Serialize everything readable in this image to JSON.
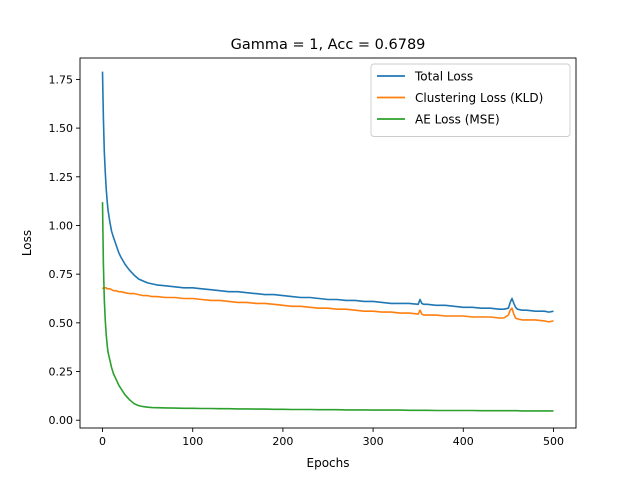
{
  "chart_data": {
    "type": "line",
    "title": "Gamma = 1, Acc = 0.6789",
    "xlabel": "Epochs",
    "ylabel": "Loss",
    "xlim": [
      -25,
      525
    ],
    "ylim": [
      -0.04,
      1.86
    ],
    "x_ticks": [
      0,
      100,
      200,
      300,
      400,
      500
    ],
    "y_ticks": [
      0.0,
      0.25,
      0.5,
      0.75,
      1.0,
      1.25,
      1.5,
      1.75
    ],
    "y_tick_labels": [
      "0.00",
      "0.25",
      "0.50",
      "0.75",
      "1.00",
      "1.25",
      "1.50",
      "1.75"
    ],
    "grid": false,
    "legend_position": "top-right",
    "x": [
      0,
      1,
      2,
      3,
      4,
      5,
      6,
      8,
      10,
      12,
      15,
      18,
      20,
      25,
      30,
      35,
      40,
      45,
      50,
      55,
      60,
      70,
      80,
      90,
      100,
      110,
      120,
      130,
      140,
      150,
      160,
      170,
      180,
      190,
      200,
      210,
      220,
      230,
      240,
      250,
      260,
      270,
      280,
      290,
      300,
      310,
      320,
      330,
      340,
      350,
      352,
      354,
      356,
      360,
      370,
      380,
      390,
      400,
      410,
      420,
      430,
      440,
      445,
      450,
      452,
      454,
      456,
      458,
      460,
      465,
      470,
      480,
      490,
      495,
      500
    ],
    "series": [
      {
        "name": "Total Loss",
        "color": "#1f77b4",
        "values": [
          1.79,
          1.55,
          1.38,
          1.27,
          1.19,
          1.13,
          1.08,
          1.02,
          0.97,
          0.94,
          0.9,
          0.86,
          0.84,
          0.8,
          0.77,
          0.745,
          0.725,
          0.715,
          0.705,
          0.7,
          0.695,
          0.69,
          0.685,
          0.68,
          0.68,
          0.675,
          0.67,
          0.665,
          0.66,
          0.66,
          0.655,
          0.65,
          0.645,
          0.645,
          0.64,
          0.635,
          0.63,
          0.63,
          0.625,
          0.62,
          0.62,
          0.615,
          0.615,
          0.61,
          0.61,
          0.605,
          0.6,
          0.6,
          0.6,
          0.595,
          0.62,
          0.6,
          0.595,
          0.595,
          0.59,
          0.59,
          0.585,
          0.58,
          0.58,
          0.575,
          0.575,
          0.57,
          0.57,
          0.575,
          0.605,
          0.625,
          0.6,
          0.58,
          0.57,
          0.565,
          0.565,
          0.56,
          0.56,
          0.555,
          0.56
        ]
      },
      {
        "name": "Clustering Loss (KLD)",
        "color": "#ff7f0e",
        "values": [
          0.675,
          0.68,
          0.68,
          0.68,
          0.68,
          0.675,
          0.675,
          0.675,
          0.67,
          0.665,
          0.665,
          0.66,
          0.66,
          0.655,
          0.65,
          0.65,
          0.645,
          0.64,
          0.64,
          0.635,
          0.635,
          0.63,
          0.63,
          0.625,
          0.625,
          0.62,
          0.615,
          0.615,
          0.61,
          0.605,
          0.605,
          0.6,
          0.6,
          0.595,
          0.59,
          0.585,
          0.585,
          0.58,
          0.575,
          0.575,
          0.57,
          0.57,
          0.565,
          0.56,
          0.56,
          0.555,
          0.555,
          0.55,
          0.55,
          0.545,
          0.565,
          0.545,
          0.54,
          0.54,
          0.54,
          0.535,
          0.535,
          0.535,
          0.53,
          0.53,
          0.53,
          0.525,
          0.525,
          0.54,
          0.565,
          0.575,
          0.545,
          0.525,
          0.52,
          0.515,
          0.515,
          0.515,
          0.51,
          0.505,
          0.51
        ]
      },
      {
        "name": "AE Loss (MSE)",
        "color": "#2ca02c",
        "values": [
          1.12,
          0.8,
          0.62,
          0.51,
          0.44,
          0.39,
          0.35,
          0.31,
          0.27,
          0.24,
          0.21,
          0.18,
          0.165,
          0.13,
          0.105,
          0.085,
          0.075,
          0.07,
          0.067,
          0.065,
          0.064,
          0.063,
          0.062,
          0.061,
          0.061,
          0.06,
          0.06,
          0.059,
          0.059,
          0.058,
          0.058,
          0.057,
          0.057,
          0.056,
          0.056,
          0.055,
          0.055,
          0.055,
          0.054,
          0.054,
          0.054,
          0.053,
          0.053,
          0.053,
          0.052,
          0.052,
          0.052,
          0.052,
          0.051,
          0.051,
          0.051,
          0.051,
          0.051,
          0.051,
          0.05,
          0.05,
          0.05,
          0.05,
          0.05,
          0.049,
          0.049,
          0.049,
          0.049,
          0.049,
          0.049,
          0.049,
          0.049,
          0.049,
          0.049,
          0.048,
          0.048,
          0.048,
          0.048,
          0.048,
          0.048
        ]
      }
    ]
  }
}
